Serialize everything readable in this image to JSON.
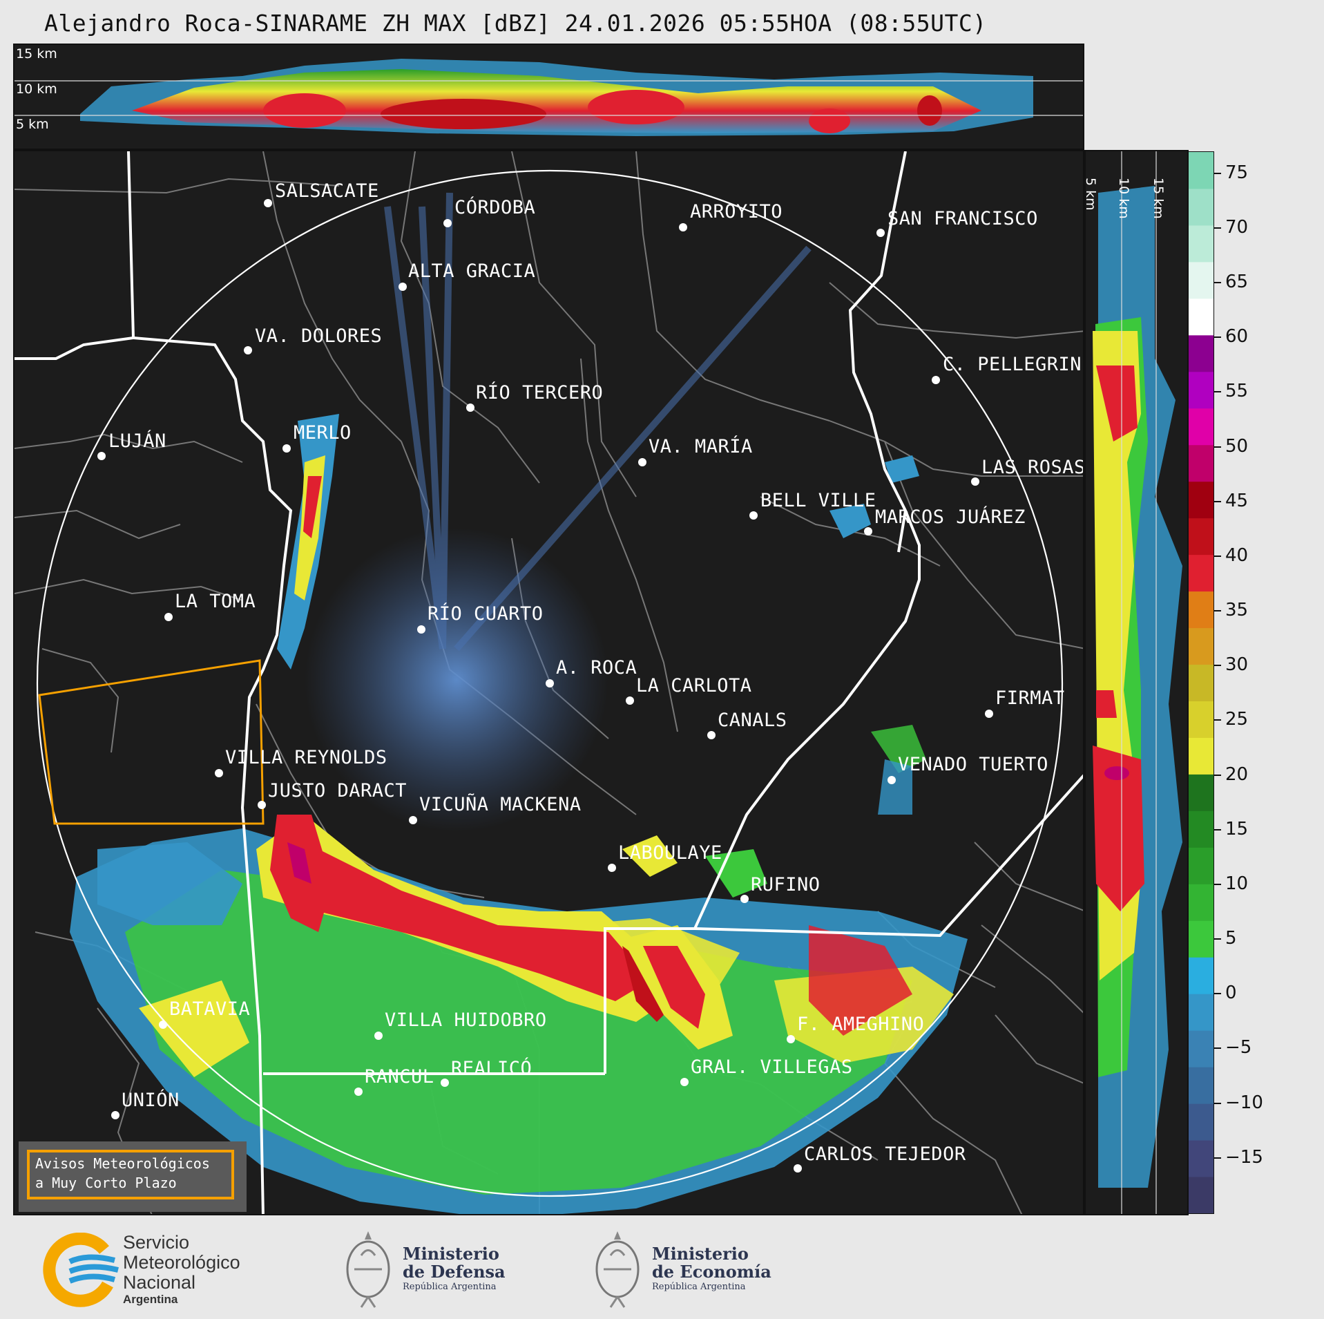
{
  "title": "Alejandro Roca-SINARAME ZH MAX [dBZ] 24.01.2026 05:55HOA (08:55UTC)",
  "top_panel": {
    "altitudes": [
      "15 km",
      "10 km",
      "5 km"
    ]
  },
  "side_panel": {
    "altitudes": [
      "5 km",
      "10 km",
      "15 km"
    ]
  },
  "cities": [
    {
      "name": "SALSACATE"
    },
    {
      "name": "CÓRDOBA"
    },
    {
      "name": "ARROYITO"
    },
    {
      "name": "SAN FRANCISCO"
    },
    {
      "name": "ALTA GRACIA"
    },
    {
      "name": "VA. DOLORES"
    },
    {
      "name": "C. PELLEGRINI"
    },
    {
      "name": "RÍO TERCERO"
    },
    {
      "name": "LUJÁN"
    },
    {
      "name": "MERLO"
    },
    {
      "name": "VA. MARÍA"
    },
    {
      "name": "LAS ROSAS"
    },
    {
      "name": "BELL VILLE"
    },
    {
      "name": "MARCOS JUÁREZ"
    },
    {
      "name": "LA TOMA"
    },
    {
      "name": "RÍO CUARTO"
    },
    {
      "name": "A. ROCA"
    },
    {
      "name": "LA CARLOTA"
    },
    {
      "name": "FIRMAT"
    },
    {
      "name": "CANALS"
    },
    {
      "name": "VILLA REYNOLDS"
    },
    {
      "name": "VENADO TUERTO"
    },
    {
      "name": "JUSTO DARACT"
    },
    {
      "name": "VICUÑA MACKENA"
    },
    {
      "name": "LABOULAYE"
    },
    {
      "name": "RUFINO"
    },
    {
      "name": "BATAVIA"
    },
    {
      "name": "VILLA HUIDOBRO"
    },
    {
      "name": "F. AMEGHINO"
    },
    {
      "name": "RANCUL"
    },
    {
      "name": "REALICÓ"
    },
    {
      "name": "GRAL. VILLEGAS"
    },
    {
      "name": "UNIÓN"
    },
    {
      "name": "CARLOS TEJEDOR"
    }
  ],
  "warning_box": {
    "line1": "Avisos Meteorológicos",
    "line2": "a Muy Corto Plazo"
  },
  "colorbar": {
    "unit": "dBZ",
    "ticks": [
      "75",
      "70",
      "65",
      "60",
      "55",
      "50",
      "45",
      "40",
      "35",
      "30",
      "25",
      "20",
      "15",
      "10",
      "5",
      "0",
      "−5",
      "−10",
      "−15"
    ],
    "range": [
      -20,
      77
    ],
    "colors": [
      "#3b3a66",
      "#41467a",
      "#3c5a8e",
      "#386ea0",
      "#3a82b4",
      "#3596c8",
      "#2aaee0",
      "#3cc83c",
      "#33b433",
      "#2a9e2a",
      "#238a23",
      "#1e741e",
      "#e8e836",
      "#d8d02c",
      "#c8b826",
      "#d89a1e",
      "#e07e16",
      "#e02030",
      "#c0101a",
      "#a00010",
      "#c0006a",
      "#e000a8",
      "#b000c0",
      "#8c0090",
      "#ffffff",
      "#e4f6ef",
      "#bcebd8",
      "#9ee0c8",
      "#7dd6b4"
    ]
  },
  "logos": {
    "smn": {
      "line1": "Servicio",
      "line2": "Meteorológico",
      "line3": "Nacional",
      "line4": "Argentina"
    },
    "defensa": {
      "line1": "Ministerio",
      "line2": "de Defensa",
      "line3": "República Argentina"
    },
    "economia": {
      "line1": "Ministerio",
      "line2": "de Economía",
      "line3": "República Argentina"
    }
  }
}
